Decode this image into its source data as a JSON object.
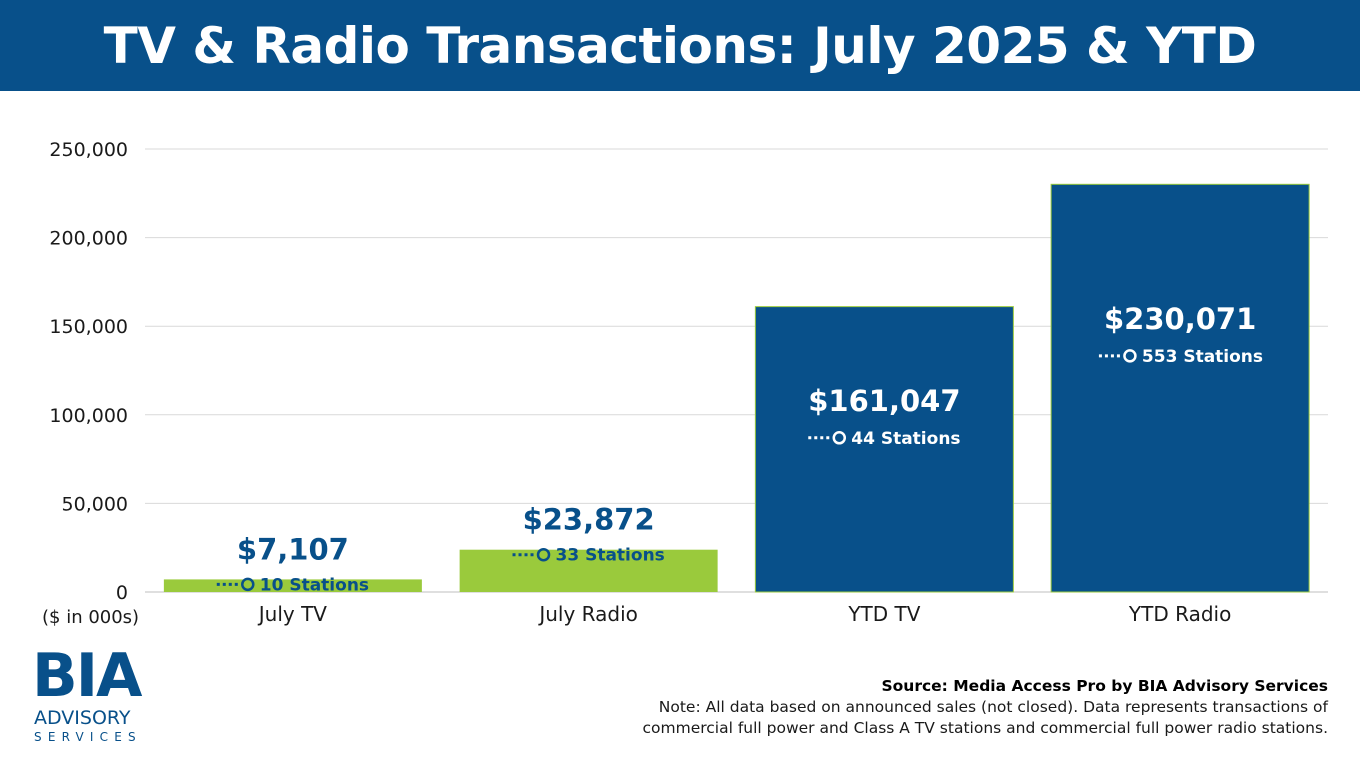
{
  "colors": {
    "navy": "#08508A",
    "green": "#9ACA3C",
    "white": "#FFFFFF",
    "gridline": "#D9D9D9",
    "text": "#1A1A1A"
  },
  "header": {
    "title": "TV & Radio Transactions: July 2025 & YTD"
  },
  "chart_data": {
    "type": "bar",
    "categories": [
      "July TV",
      "July Radio",
      "YTD TV",
      "YTD Radio"
    ],
    "values": [
      7107,
      23872,
      161047,
      230071
    ],
    "bar_colors": [
      "#9ACA3C",
      "#9ACA3C",
      "#08508A",
      "#08508A"
    ],
    "value_labels": [
      "$7,107",
      "$23,872",
      "$161,047",
      "$230,071"
    ],
    "station_labels": [
      "10 Stations",
      "33 Stations",
      "44 Stations",
      "553 Stations"
    ],
    "ylim": [
      0,
      250000
    ],
    "yticks": [
      0,
      50000,
      100000,
      150000,
      200000,
      250000
    ],
    "ytick_labels": [
      "0",
      "50,000",
      "100,000",
      "150,000",
      "200,000",
      "250,000"
    ],
    "unit_label": "($ in 000s)",
    "grid": true,
    "legend": "none",
    "title": "",
    "xlabel": "",
    "ylabel": ""
  },
  "logo": {
    "name": "BIA",
    "line2": "ADVISORY",
    "line3": "SERVICES"
  },
  "footer": {
    "source": "Source: Media Access Pro by BIA Advisory Services",
    "note_line1": "Note: All data based on announced sales (not closed).  Data represents transactions of",
    "note_line2": "commercial full power and Class A TV stations and commercial full power radio stations."
  }
}
